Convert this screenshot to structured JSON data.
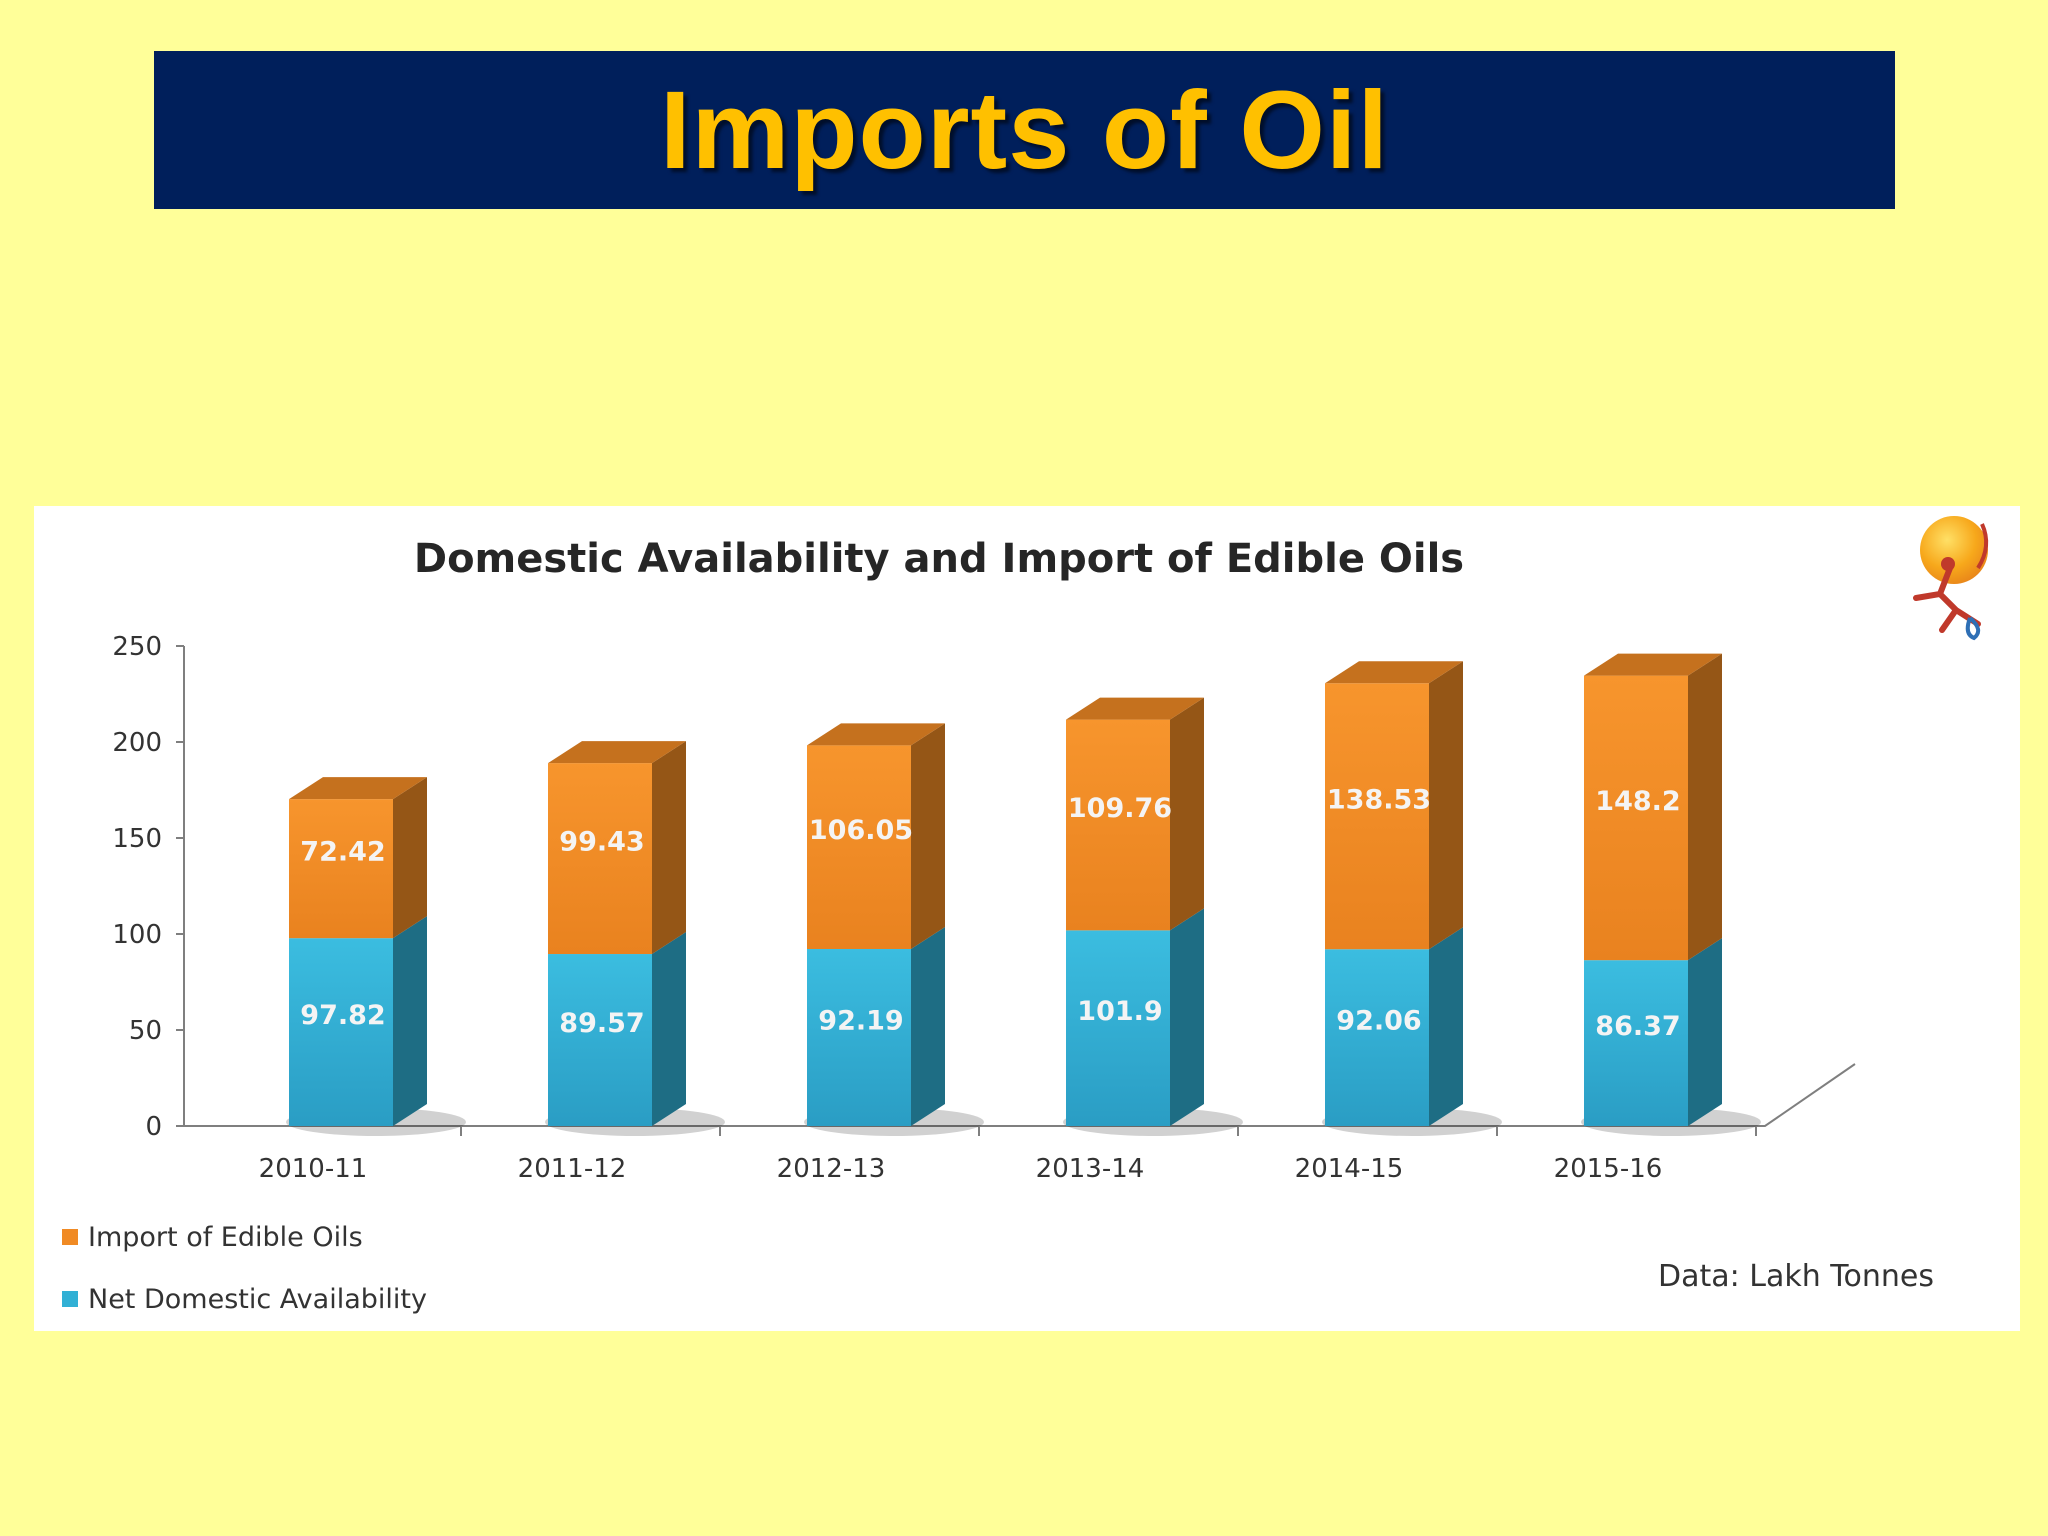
{
  "slide": {
    "title": "Imports of Oil",
    "background": "#ffff99",
    "banner_color": "#001f5b",
    "title_color": "#ffc000"
  },
  "logo": {
    "icon": "runner-sun-logo-icon"
  },
  "chart_data": {
    "type": "bar",
    "stacked": true,
    "style": "3d",
    "title": "Domestic Availability and Import of Edible Oils",
    "categories": [
      "2010-11",
      "2011-12",
      "2012-13",
      "2013-14",
      "2014-15",
      "2015-16"
    ],
    "series": [
      {
        "name": "Net Domestic Availability",
        "color": "#31b0d5",
        "values": [
          97.82,
          89.57,
          92.19,
          101.9,
          92.06,
          86.37
        ],
        "labels": [
          "97.82",
          "89.57",
          "92.19",
          "101.9",
          "92.06",
          "86.37"
        ]
      },
      {
        "name": "Import of Edible Oils",
        "color": "#f08a24",
        "values": [
          72.42,
          99.43,
          106.05,
          109.76,
          138.53,
          148.2
        ],
        "labels": [
          "72.42",
          "99.43",
          "106.05",
          "109.76",
          "138.53",
          "148.2"
        ]
      }
    ],
    "yticks": [
      "0",
      "50",
      "100",
      "150",
      "200",
      "250"
    ],
    "ylim": [
      0,
      250
    ],
    "grid": false,
    "legend_position": "bottom-left",
    "legend": [
      "Import of Edible Oils",
      "Net Domestic Availability"
    ],
    "note": "Data: Lakh Tonnes"
  }
}
